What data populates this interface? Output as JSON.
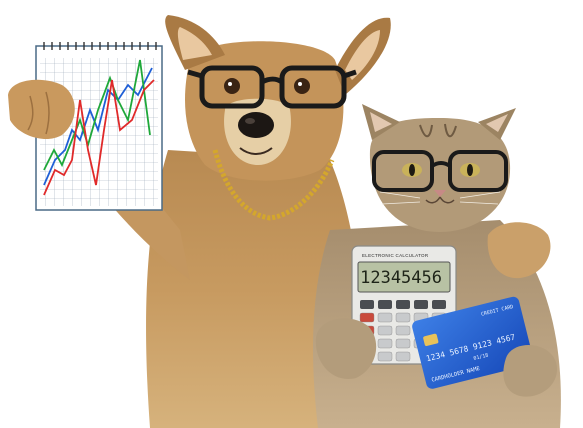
{
  "scene": {
    "subjects": [
      "dog",
      "cat"
    ],
    "background_color": "#ffffff"
  },
  "notepad": {
    "chart_line_colors": [
      "#1f5fd6",
      "#1fa83a",
      "#e02a2a"
    ]
  },
  "calculator": {
    "brand": "ELECTRONIC CALCULATOR",
    "display": "12345456",
    "key_rows": [
      [
        "",
        "",
        "",
        "",
        ""
      ],
      [
        "",
        "",
        "",
        "",
        ""
      ],
      [
        "",
        "",
        "",
        "",
        ""
      ],
      [
        "",
        "",
        "",
        "",
        ""
      ],
      [
        "",
        "",
        "",
        "",
        ""
      ]
    ]
  },
  "credit_card": {
    "header": "CREDIT CARD",
    "number": "1234 5678 9123 4567",
    "valid_thru": "01/18",
    "holder": "CARDHOLDER NAME",
    "color": "#1d5fd8"
  },
  "accessories": {
    "glasses_color": "#1a1a1a",
    "chain_color": "#d4a72c"
  }
}
